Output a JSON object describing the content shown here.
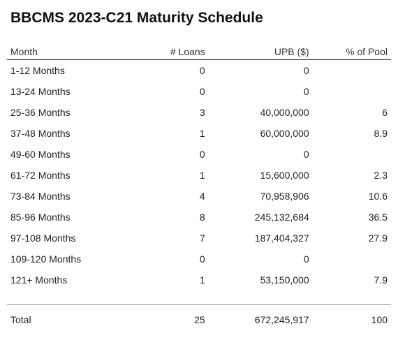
{
  "title": "BBCMS 2023-C21 Maturity Schedule",
  "columns": {
    "month": "Month",
    "loans": "# Loans",
    "upb": "UPB ($)",
    "pool": "% of Pool"
  },
  "rows": [
    {
      "month": "1-12 Months",
      "loans": "0",
      "upb": "0",
      "pool": ""
    },
    {
      "month": "13-24 Months",
      "loans": "0",
      "upb": "0",
      "pool": ""
    },
    {
      "month": "25-36 Months",
      "loans": "3",
      "upb": "40,000,000",
      "pool": "6"
    },
    {
      "month": "37-48 Months",
      "loans": "1",
      "upb": "60,000,000",
      "pool": "8.9"
    },
    {
      "month": "49-60 Months",
      "loans": "0",
      "upb": "0",
      "pool": ""
    },
    {
      "month": "61-72 Months",
      "loans": "1",
      "upb": "15,600,000",
      "pool": "2.3"
    },
    {
      "month": "73-84 Months",
      "loans": "4",
      "upb": "70,958,906",
      "pool": "10.6"
    },
    {
      "month": "85-96 Months",
      "loans": "8",
      "upb": "245,132,684",
      "pool": "36.5"
    },
    {
      "month": "97-108 Months",
      "loans": "7",
      "upb": "187,404,327",
      "pool": "27.9"
    },
    {
      "month": "109-120 Months",
      "loans": "0",
      "upb": "0",
      "pool": ""
    },
    {
      "month": "121+ Months",
      "loans": "1",
      "upb": "53,150,000",
      "pool": "7.9"
    }
  ],
  "total": {
    "month": "Total",
    "loans": "25",
    "upb": "672,245,917",
    "pool": "100"
  }
}
